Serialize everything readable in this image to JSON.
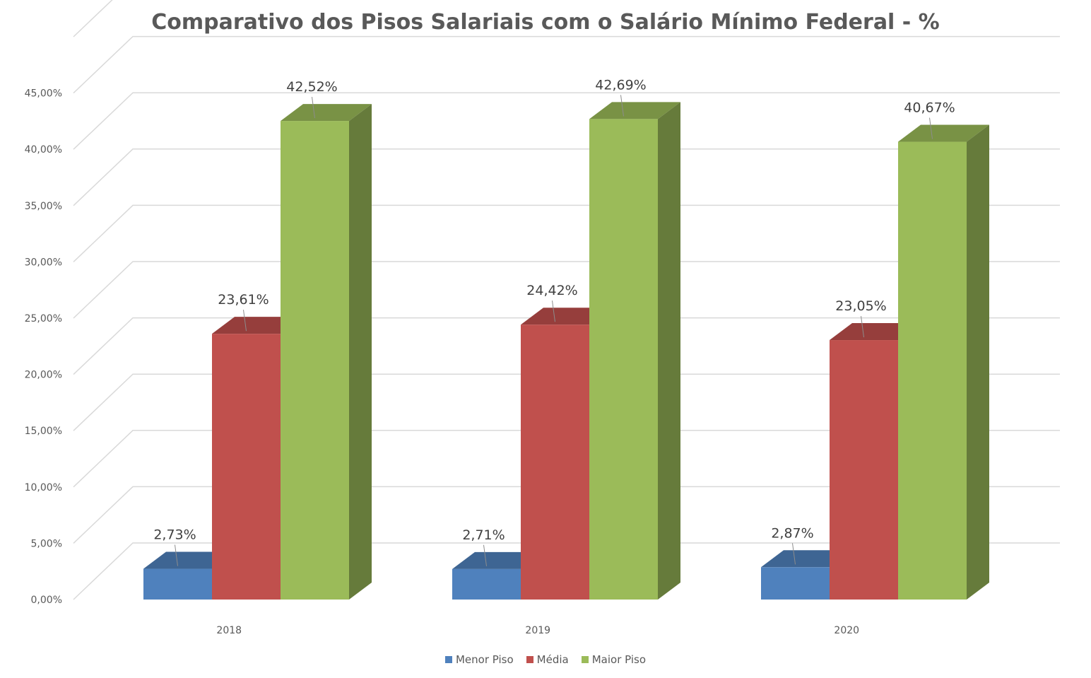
{
  "chart_data": {
    "type": "bar",
    "title": "Comparativo dos Pisos Salariais com o Salário Mínimo Federal - %",
    "xlabel": "",
    "ylabel": "",
    "categories": [
      "2018",
      "2019",
      "2020"
    ],
    "series": [
      {
        "name": "Menor Piso",
        "values": [
          2.73,
          2.71,
          2.87
        ],
        "labels": [
          "2,73%",
          "2,71%",
          "2,87%"
        ],
        "color": "#4F81BD"
      },
      {
        "name": "Média",
        "values": [
          23.61,
          24.42,
          23.05
        ],
        "labels": [
          "23,61%",
          "24,42%",
          "23,05%"
        ],
        "color": "#C0504D"
      },
      {
        "name": "Maior Piso",
        "values": [
          42.52,
          42.69,
          40.67
        ],
        "labels": [
          "42,52%",
          "42,69%",
          "40,67%"
        ],
        "color": "#9BBB59"
      }
    ],
    "ylim": [
      0,
      45
    ],
    "yticks": [
      0,
      5,
      10,
      15,
      20,
      25,
      30,
      35,
      40,
      45
    ],
    "ytick_labels": [
      "0,00%",
      "5,00%",
      "10,00%",
      "15,00%",
      "20,00%",
      "25,00%",
      "30,00%",
      "35,00%",
      "40,00%",
      "45,00%"
    ],
    "grid": true,
    "style": "3d-column",
    "legend_position": "bottom"
  }
}
